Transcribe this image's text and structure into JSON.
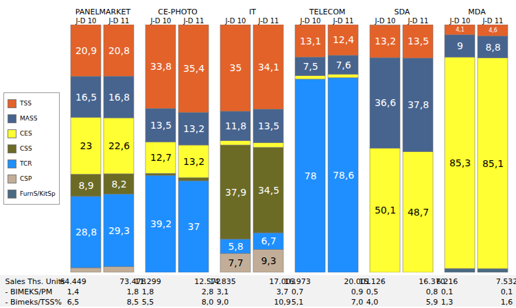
{
  "chart_data": {
    "type": "bar",
    "stacked": true,
    "data_labels": true,
    "tick_labels": "x",
    "legend": "left",
    "ylim": [
      0,
      100
    ],
    "groups": [
      "PANELMARKET",
      "CE-PHOTO",
      "IT",
      "TELECOM",
      "SDA",
      "MDA"
    ],
    "categories": [
      "J-D 10",
      "J-D 11",
      "J-D 10",
      "J-D 11",
      "J-D 10",
      "J-D 11",
      "J-D 10",
      "J-D 11",
      "J-D 10",
      "J-D 11",
      "J-D 10",
      "J-D 11"
    ],
    "series": [
      {
        "name": "TSS",
        "color": "#e3622a",
        "values": [
          20.9,
          20.8,
          33.8,
          35.4,
          35,
          34.1,
          13.1,
          12.4,
          13.2,
          13.5,
          4.1,
          4.6
        ],
        "value_labels": [
          "20,9",
          "20,8",
          "33,8",
          "35,4",
          "35",
          "34,1",
          "13,1",
          "12,4",
          "13,2",
          "13,5",
          "4,1",
          "4,6"
        ]
      },
      {
        "name": "MASS",
        "color": "#47648f",
        "values": [
          16.5,
          16.8,
          13.5,
          13.2,
          11.8,
          13.5,
          7.5,
          7.6,
          36.6,
          37.8,
          9,
          8.8
        ],
        "value_labels": [
          "16,5",
          "16,8",
          "13,5",
          "13,2",
          "11,8",
          "13,5",
          "7,5",
          "7,6",
          "36,6",
          "37,8",
          "9",
          "8,8"
        ]
      },
      {
        "name": "CES",
        "color": "#ffff33",
        "values": [
          23,
          22.6,
          12.7,
          13.2,
          1.8,
          1.9,
          1.4,
          1.4,
          50.1,
          48.7,
          85.3,
          85.1
        ],
        "value_labels": [
          "23",
          "22,6",
          "12,7",
          "13,2",
          null,
          null,
          null,
          null,
          "50,1",
          "48,7",
          "85,3",
          "85,1"
        ]
      },
      {
        "name": "CSS",
        "color": "#6b6b26",
        "values": [
          8.9,
          8.2,
          0.8,
          1.2,
          37.9,
          34.5,
          null,
          null,
          null,
          null,
          null,
          null
        ],
        "value_labels": [
          "8,9",
          "8,2",
          null,
          null,
          "37,9",
          "34,5",
          null,
          null,
          null,
          null,
          null,
          null
        ]
      },
      {
        "name": "TCR",
        "color": "#1f8fff",
        "values": [
          28.8,
          29.3,
          39.2,
          37,
          5.8,
          6.7,
          78,
          78.6,
          null,
          null,
          null,
          null
        ],
        "value_labels": [
          "28,8",
          "29,3",
          "39,2",
          "37",
          "5,8",
          "6,7",
          "78",
          "78,6",
          null,
          null,
          null,
          null
        ]
      },
      {
        "name": "CSP",
        "color": "#c2ae98",
        "values": [
          1.9,
          2.3,
          null,
          null,
          7.7,
          9.3,
          null,
          null,
          null,
          null,
          null,
          null
        ],
        "value_labels": [
          null,
          null,
          null,
          null,
          "7,7",
          "9,3",
          null,
          null,
          null,
          null,
          null,
          null
        ]
      },
      {
        "name": "FurnS/KitSp",
        "color": "#4b6a82",
        "values": [
          null,
          null,
          null,
          null,
          null,
          null,
          null,
          null,
          null,
          null,
          1.6,
          1.5
        ],
        "value_labels": [
          null,
          null,
          null,
          null,
          null,
          null,
          null,
          null,
          null,
          null,
          null,
          null
        ]
      }
    ],
    "table": {
      "rows": [
        {
          "label": "Sales Ths. Units",
          "values": [
            "64.449",
            "73.478",
            "11.299",
            "12.572",
            "14.835",
            "17.003",
            "16.973",
            "20.001",
            "15.126",
            "16.370",
            "6.216",
            "7.532"
          ]
        },
        {
          "label": "- BIMEKS/PM",
          "values": [
            "1,4",
            "1,8",
            "1,8",
            "2,8",
            "3,1",
            "3,7",
            "0,7",
            "0,9",
            "0,5",
            "0,8",
            "0,1",
            "0,1"
          ]
        },
        {
          "label": "- Bimeks/TSS%",
          "values": [
            "6,5",
            "8,5",
            "5,5",
            "8,0",
            "9,0",
            "10,9",
            "5,1",
            "7,0",
            "4,0",
            "5,9",
            "1,3",
            "1,6"
          ]
        }
      ]
    }
  }
}
